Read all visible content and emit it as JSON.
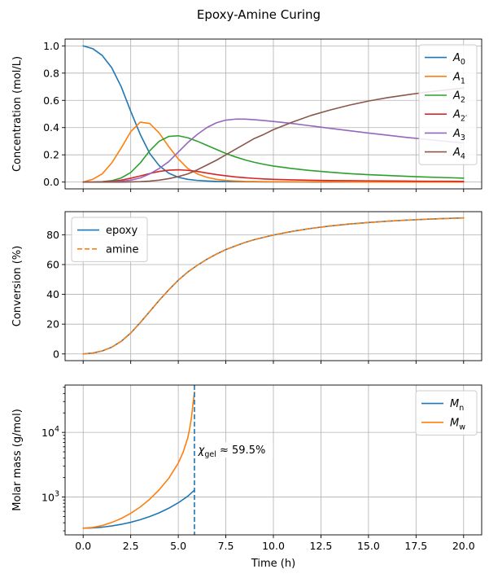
{
  "figure_title": "Epoxy-Amine Curing",
  "colors": {
    "A0": "#1f77b4",
    "A1": "#ff7f0e",
    "A2": "#2ca02c",
    "A2p": "#d62728",
    "A3": "#9467bd",
    "A4": "#8c564b",
    "epoxy": "#1f77b4",
    "amine": "#ff7f0e",
    "Mn": "#1f77b4",
    "Mw": "#ff7f0e",
    "gel_line": "#1f77b4"
  },
  "chart_data": [
    {
      "type": "line",
      "ylabel": "Concentration (mol/L)",
      "xlabel": "",
      "xlim": [
        -0.95,
        20.95
      ],
      "ylim": [
        -0.05,
        1.05
      ],
      "xticks": [
        0,
        2.5,
        5,
        7.5,
        10,
        12.5,
        15,
        17.5,
        20
      ],
      "yticks": [
        0.0,
        0.2,
        0.4,
        0.6,
        0.8,
        1.0
      ],
      "ytick_labels": [
        "0.0",
        "0.2",
        "0.4",
        "0.6",
        "0.8",
        "1.0"
      ],
      "grid": true,
      "legend_position": "top-right",
      "x": [
        0,
        0.5,
        1,
        1.5,
        2,
        2.5,
        3,
        3.5,
        4,
        4.5,
        5,
        5.5,
        6,
        6.5,
        7,
        7.5,
        8,
        8.5,
        9,
        9.5,
        10,
        11,
        12,
        13,
        14,
        15,
        16,
        17,
        18,
        19,
        20
      ],
      "series": [
        {
          "key": "A0",
          "name": "A",
          "sub": "0",
          "values": [
            1.0,
            0.98,
            0.93,
            0.84,
            0.7,
            0.52,
            0.35,
            0.21,
            0.12,
            0.065,
            0.035,
            0.02,
            0.012,
            0.008,
            0.005,
            0.004,
            0.003,
            0.002,
            0.002,
            0.001,
            0.001,
            0.001,
            0,
            0,
            0,
            0,
            0,
            0,
            0,
            0,
            0
          ]
        },
        {
          "key": "A1",
          "name": "A",
          "sub": "1",
          "values": [
            0.0,
            0.02,
            0.06,
            0.14,
            0.25,
            0.37,
            0.44,
            0.43,
            0.36,
            0.26,
            0.17,
            0.1,
            0.06,
            0.035,
            0.02,
            0.012,
            0.008,
            0.005,
            0.004,
            0.003,
            0.002,
            0.001,
            0.001,
            0.001,
            0,
            0,
            0,
            0,
            0,
            0,
            0
          ]
        },
        {
          "key": "A2",
          "name": "A",
          "sub": "2",
          "values": [
            0.0,
            0.0,
            0.003,
            0.01,
            0.03,
            0.07,
            0.14,
            0.23,
            0.3,
            0.335,
            0.34,
            0.325,
            0.3,
            0.27,
            0.24,
            0.21,
            0.185,
            0.163,
            0.145,
            0.13,
            0.118,
            0.099,
            0.084,
            0.072,
            0.062,
            0.054,
            0.048,
            0.042,
            0.037,
            0.033,
            0.029
          ]
        },
        {
          "key": "A2p",
          "name": "A",
          "sub": "2′",
          "values": [
            0.0,
            0.0,
            0.002,
            0.006,
            0.014,
            0.028,
            0.045,
            0.063,
            0.078,
            0.087,
            0.09,
            0.086,
            0.078,
            0.066,
            0.055,
            0.046,
            0.038,
            0.032,
            0.027,
            0.023,
            0.02,
            0.016,
            0.013,
            0.011,
            0.01,
            0.009,
            0.008,
            0.007,
            0.006,
            0.006,
            0.005
          ]
        },
        {
          "key": "A3",
          "name": "A",
          "sub": "3",
          "values": [
            0.0,
            0.0,
            0.0,
            0.002,
            0.006,
            0.014,
            0.03,
            0.06,
            0.1,
            0.15,
            0.22,
            0.29,
            0.35,
            0.4,
            0.435,
            0.455,
            0.462,
            0.462,
            0.458,
            0.452,
            0.445,
            0.43,
            0.412,
            0.394,
            0.377,
            0.36,
            0.344,
            0.328,
            0.314,
            0.3,
            0.287
          ]
        },
        {
          "key": "A4",
          "name": "A",
          "sub": "4",
          "values": [
            0.0,
            0.0,
            0.0,
            0.0,
            0.0,
            0.001,
            0.003,
            0.007,
            0.014,
            0.025,
            0.04,
            0.06,
            0.09,
            0.125,
            0.16,
            0.2,
            0.24,
            0.28,
            0.32,
            0.35,
            0.385,
            0.44,
            0.49,
            0.53,
            0.565,
            0.595,
            0.62,
            0.64,
            0.66,
            0.675,
            0.69
          ]
        }
      ]
    },
    {
      "type": "line",
      "ylabel": "Conversion (%)",
      "xlabel": "",
      "xlim": [
        -0.95,
        20.95
      ],
      "ylim": [
        -4.5,
        95.5
      ],
      "xticks": [
        0,
        2.5,
        5,
        7.5,
        10,
        12.5,
        15,
        17.5,
        20
      ],
      "yticks": [
        0,
        20,
        40,
        60,
        80
      ],
      "ytick_labels": [
        "0",
        "20",
        "40",
        "60",
        "80"
      ],
      "grid": true,
      "legend_position": "top-left",
      "x": [
        0,
        0.5,
        1,
        1.5,
        2,
        2.5,
        3,
        3.5,
        4,
        4.5,
        5,
        5.5,
        6,
        6.5,
        7,
        7.5,
        8,
        8.5,
        9,
        9.5,
        10,
        11,
        12,
        13,
        14,
        15,
        16,
        17,
        18,
        19,
        20
      ],
      "series": [
        {
          "key": "epoxy",
          "name": "epoxy",
          "dash": false,
          "values": [
            0,
            0.6,
            2,
            4.5,
            8.5,
            14,
            21,
            28.5,
            36,
            43,
            49.5,
            55,
            59.5,
            63.5,
            67,
            70,
            72.5,
            74.8,
            76.7,
            78.3,
            79.8,
            82.3,
            84.3,
            85.9,
            87.2,
            88.2,
            89.1,
            89.8,
            90.4,
            90.9,
            91.3
          ]
        },
        {
          "key": "amine",
          "name": "amine",
          "dash": true,
          "values": [
            0,
            0.6,
            2,
            4.5,
            8.5,
            14,
            21,
            28.5,
            36,
            43,
            49.5,
            55,
            59.5,
            63.5,
            67,
            70,
            72.5,
            74.8,
            76.7,
            78.3,
            79.8,
            82.3,
            84.3,
            85.9,
            87.2,
            88.2,
            89.1,
            89.8,
            90.4,
            90.9,
            91.3
          ]
        }
      ]
    },
    {
      "type": "line",
      "ylabel": "Molar mass (g/mol)",
      "xlabel": "Time (h)",
      "yscale": "log",
      "xlim": [
        -0.95,
        20.95
      ],
      "ylim": [
        260,
        54000
      ],
      "xticks": [
        0,
        2.5,
        5,
        7.5,
        10,
        12.5,
        15,
        17.5,
        20
      ],
      "xtick_labels": [
        "0.0",
        "2.5",
        "5.0",
        "7.5",
        "10.0",
        "12.5",
        "15.0",
        "17.5",
        "20.0"
      ],
      "yticks": [
        1000,
        10000
      ],
      "ytick_labels": [
        {
          "base": "10",
          "exp": "3"
        },
        {
          "base": "10",
          "exp": "4"
        }
      ],
      "grid": true,
      "legend_position": "top-right",
      "gel_time": 5.85,
      "annotation": {
        "prefix": "χ",
        "sub": "gel",
        "suffix": " ≈ 59.5%",
        "x": 6.05,
        "y": 5000
      },
      "series": [
        {
          "key": "Mn",
          "name": "M",
          "sub": "n",
          "x": [
            0,
            0.5,
            1,
            1.5,
            2,
            2.5,
            3,
            3.5,
            4,
            4.5,
            5,
            5.5,
            5.85
          ],
          "values": [
            330,
            333,
            342,
            357,
            378,
            407,
            446,
            499,
            571,
            672,
            815,
            1030,
            1280
          ]
        },
        {
          "key": "Mw",
          "name": "M",
          "sub": "w",
          "x": [
            0,
            0.5,
            1,
            1.5,
            2,
            2.5,
            3,
            3.5,
            4,
            4.5,
            5,
            5.25,
            5.5,
            5.6,
            5.7,
            5.75,
            5.8,
            5.85
          ],
          "values": [
            330,
            338,
            362,
            404,
            466,
            560,
            702,
            925,
            1300,
            1950,
            3350,
            4900,
            8200,
            11500,
            17500,
            24000,
            32000,
            42000
          ]
        }
      ]
    }
  ]
}
